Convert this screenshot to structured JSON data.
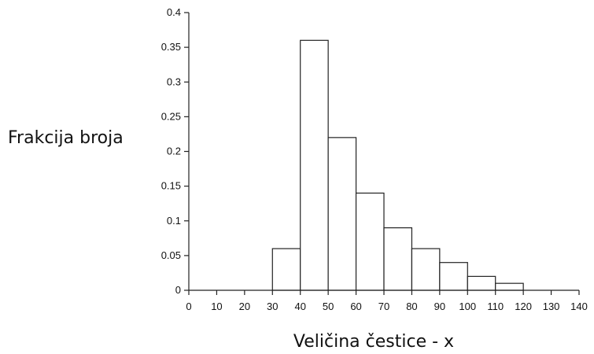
{
  "chart_data": {
    "type": "bar",
    "xlabel": "Veličina čestice - x",
    "ylabel": "Frakcija broja",
    "xlim": [
      0,
      140
    ],
    "ylim": [
      0,
      0.4
    ],
    "x_ticks": [
      "0",
      "10",
      "20",
      "30",
      "40",
      "50",
      "60",
      "70",
      "80",
      "90",
      "100",
      "110",
      "120",
      "130",
      "140"
    ],
    "y_ticks": [
      "0",
      "0.05",
      "0.1",
      "0.15",
      "0.2",
      "0.25",
      "0.3",
      "0.35",
      "0.4"
    ],
    "bins": [
      {
        "range": [
          30,
          40
        ],
        "value": 0.06
      },
      {
        "range": [
          40,
          50
        ],
        "value": 0.36
      },
      {
        "range": [
          50,
          60
        ],
        "value": 0.22
      },
      {
        "range": [
          60,
          70
        ],
        "value": 0.14
      },
      {
        "range": [
          70,
          80
        ],
        "value": 0.09
      },
      {
        "range": [
          80,
          90
        ],
        "value": 0.06
      },
      {
        "range": [
          90,
          100
        ],
        "value": 0.04
      },
      {
        "range": [
          100,
          110
        ],
        "value": 0.02
      },
      {
        "range": [
          110,
          120
        ],
        "value": 0.01
      }
    ],
    "grid": false,
    "colors": {
      "bar_fill": "#ffffff",
      "bar_stroke": "#222222",
      "axis": "#222222"
    }
  }
}
